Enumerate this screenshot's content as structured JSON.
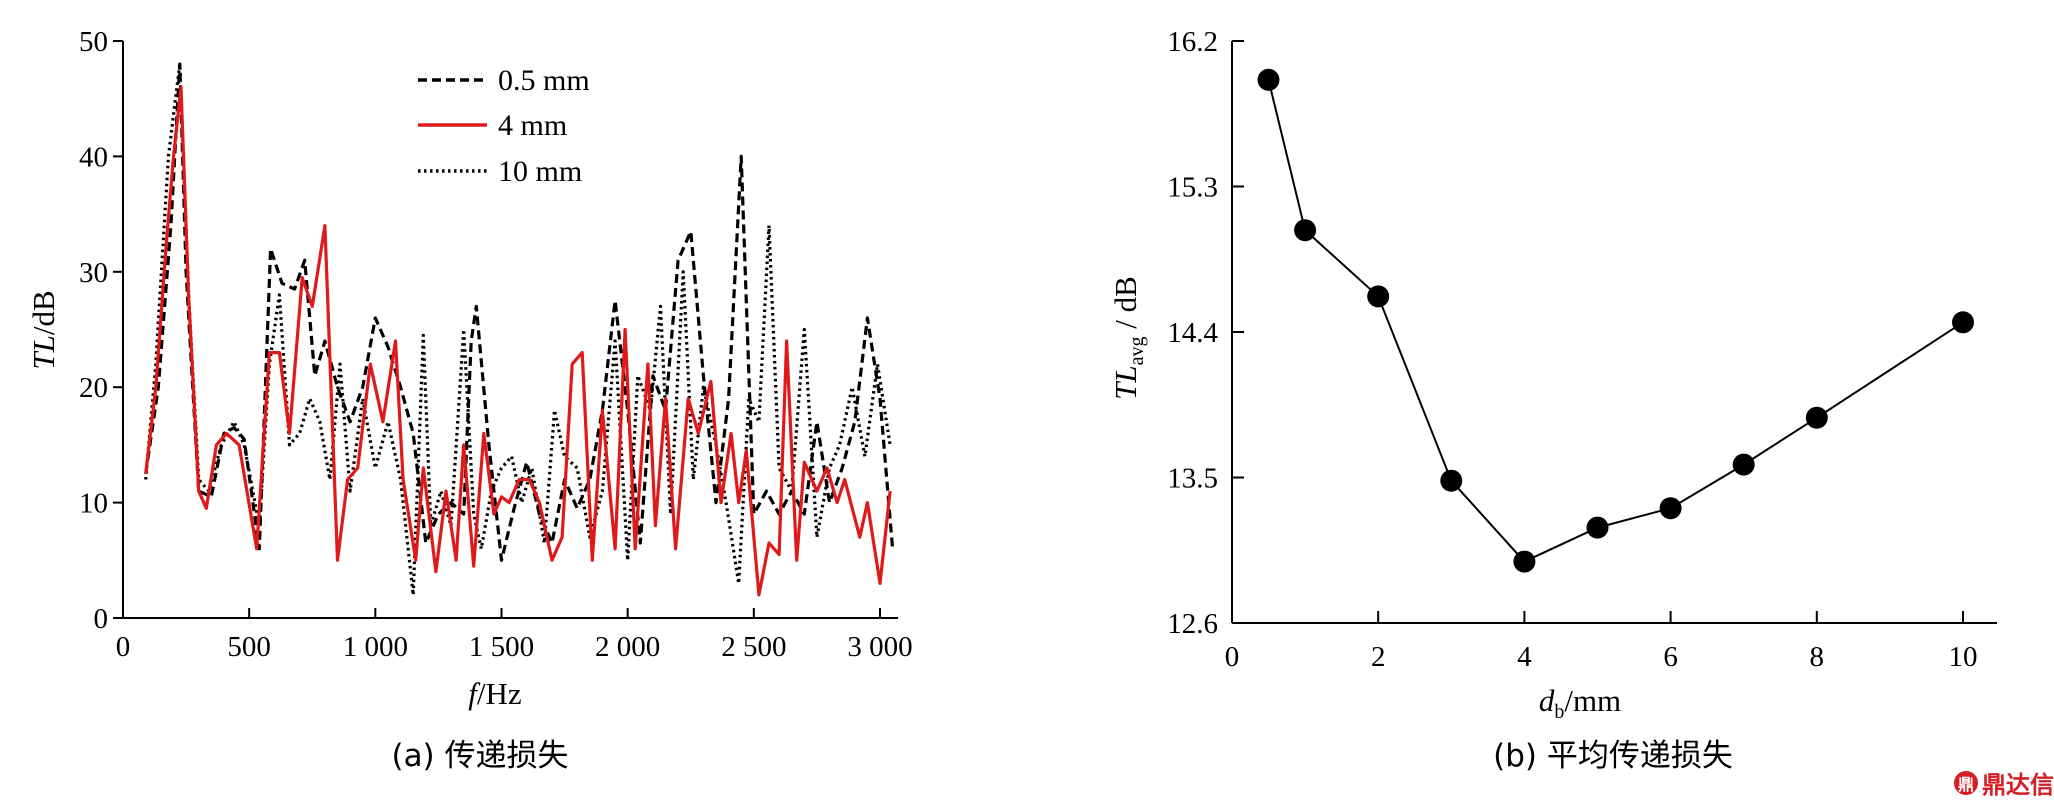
{
  "chart_data": [
    {
      "type": "line",
      "xlabel_italic": "f",
      "xlabel_unit": "/Hz",
      "ylabel_italic": "TL",
      "ylabel_unit": "/dB",
      "xlim": [
        0,
        3050
      ],
      "ylim": [
        0,
        50
      ],
      "xticks": [
        0,
        500,
        1000,
        1500,
        2000,
        2500,
        3000
      ],
      "xtick_labels": [
        "0",
        "500",
        "1 000",
        "1 500",
        "2 000",
        "2 500",
        "3 000"
      ],
      "yticks": [
        0,
        10,
        20,
        30,
        40,
        50
      ],
      "ytick_labels": [
        "0",
        "10",
        "20",
        "30",
        "40",
        "50"
      ],
      "caption": "(a) 传递损失",
      "grid": false,
      "legend_position": "top-center",
      "series": [
        {
          "name": "0.5 mm",
          "color": "#000000",
          "dash": "dashed",
          "x": [
            90,
            140,
            190,
            225,
            250,
            300,
            350,
            400,
            440,
            480,
            540,
            585,
            630,
            680,
            720,
            760,
            800,
            850,
            900,
            950,
            1000,
            1050,
            1100,
            1150,
            1200,
            1250,
            1300,
            1350,
            1380,
            1400,
            1450,
            1500,
            1550,
            1600,
            1650,
            1700,
            1750,
            1800,
            1850,
            1900,
            1950,
            2000,
            2050,
            2100,
            2150,
            2200,
            2250,
            2300,
            2350,
            2400,
            2450,
            2500,
            2550,
            2600,
            2650,
            2700,
            2750,
            2800,
            2850,
            2900,
            2950,
            3000,
            3050
          ],
          "y": [
            12.5,
            20,
            34,
            48,
            30,
            11,
            10.5,
            16,
            16.5,
            15.5,
            6,
            32,
            29,
            28.5,
            31,
            21,
            24,
            20,
            17,
            20,
            26,
            23.5,
            20,
            16,
            6.5,
            9,
            10,
            9,
            24,
            27,
            15,
            5,
            9.5,
            13.5,
            9,
            6.5,
            12,
            9.5,
            12,
            18,
            27.5,
            18,
            6.5,
            21,
            18,
            31,
            33.5,
            21,
            10,
            19,
            40,
            9,
            11,
            9,
            11,
            9,
            17,
            10,
            13,
            17,
            26,
            19,
            6
          ]
        },
        {
          "name": "4 mm",
          "color": "#e01a1a",
          "dash": "solid",
          "x": [
            90,
            130,
            170,
            200,
            230,
            260,
            300,
            330,
            370,
            410,
            460,
            530,
            580,
            620,
            660,
            710,
            750,
            800,
            850,
            890,
            930,
            980,
            1030,
            1080,
            1110,
            1160,
            1190,
            1240,
            1280,
            1320,
            1350,
            1390,
            1430,
            1470,
            1500,
            1530,
            1570,
            1610,
            1650,
            1700,
            1740,
            1780,
            1820,
            1860,
            1900,
            1950,
            1990,
            2030,
            2080,
            2110,
            2150,
            2190,
            2240,
            2280,
            2330,
            2370,
            2410,
            2440,
            2470,
            2520,
            2560,
            2600,
            2630,
            2670,
            2700,
            2750,
            2790,
            2830,
            2860,
            2920,
            2950,
            3000,
            3040
          ],
          "y": [
            12.5,
            20,
            32,
            40,
            46,
            28,
            11,
            9.5,
            15,
            16,
            15,
            6,
            23,
            23,
            16,
            29.5,
            27,
            34,
            5,
            12,
            13,
            22,
            17,
            24,
            12,
            5,
            13,
            4,
            11,
            5,
            15,
            4.5,
            16,
            9,
            10.5,
            10,
            12,
            12,
            10,
            5,
            7,
            22,
            23,
            5,
            18,
            6,
            25,
            6,
            22,
            8,
            19,
            6,
            19,
            16,
            20.5,
            10,
            16,
            10,
            14.5,
            2,
            6.5,
            5.5,
            24,
            5,
            13.5,
            11,
            13,
            10,
            12,
            7,
            10,
            3,
            11
          ]
        },
        {
          "name": "10 mm",
          "color": "#000000",
          "dash": "dotted",
          "x": [
            90,
            130,
            180,
            225,
            260,
            300,
            340,
            390,
            440,
            480,
            540,
            580,
            620,
            660,
            700,
            740,
            780,
            820,
            860,
            900,
            950,
            1000,
            1050,
            1100,
            1150,
            1190,
            1220,
            1260,
            1300,
            1350,
            1390,
            1420,
            1460,
            1500,
            1540,
            1580,
            1620,
            1670,
            1710,
            1750,
            1800,
            1850,
            1900,
            1950,
            2000,
            2040,
            2090,
            2130,
            2170,
            2220,
            2260,
            2300,
            2350,
            2390,
            2440,
            2480,
            2520,
            2560,
            2600,
            2650,
            2700,
            2750,
            2800,
            2840,
            2890,
            2940,
            2990,
            3040
          ],
          "y": [
            12,
            22,
            40,
            48,
            28,
            12,
            11,
            15,
            17,
            15,
            8,
            22,
            28,
            15,
            16,
            19,
            17,
            12,
            22,
            11,
            19,
            13,
            17,
            12,
            2,
            24.5,
            8,
            11,
            8,
            25,
            9,
            6,
            11,
            13,
            14,
            10,
            13,
            6.5,
            18,
            14,
            13,
            7,
            11,
            24,
            5,
            21,
            18,
            27,
            9,
            30,
            12,
            20,
            15,
            10,
            3,
            19,
            17,
            34,
            13,
            11,
            25,
            7,
            13,
            15,
            20,
            14,
            22,
            15
          ]
        }
      ]
    },
    {
      "type": "line",
      "xlabel_italic": "d",
      "xlabel_sub": "b",
      "xlabel_unit": "/mm",
      "ylabel_italic": "TL",
      "ylabel_sub": "avg",
      "ylabel_unit": " / dB",
      "xlim": [
        0,
        10.5
      ],
      "ylim": [
        12.6,
        16.2
      ],
      "xticks": [
        0,
        2,
        4,
        6,
        8,
        10
      ],
      "xtick_labels": [
        "0",
        "2",
        "4",
        "6",
        "8",
        "10"
      ],
      "yticks": [
        12.6,
        13.5,
        14.4,
        15.3,
        16.2
      ],
      "ytick_labels": [
        "12.6",
        "13.5",
        "14.4",
        "15.3",
        "16.2"
      ],
      "caption": "(b) 平均传递损失",
      "grid": false,
      "series": [
        {
          "color": "#000000",
          "marker": "filled-circle",
          "x": [
            0.5,
            1,
            2,
            3,
            4,
            5,
            6,
            7,
            8,
            10
          ],
          "y": [
            15.96,
            15.03,
            14.62,
            13.48,
            12.98,
            13.19,
            13.31,
            13.58,
            13.87,
            14.46
          ]
        }
      ]
    }
  ],
  "watermark": {
    "text": "鼎达信",
    "color": "#d41f26"
  }
}
